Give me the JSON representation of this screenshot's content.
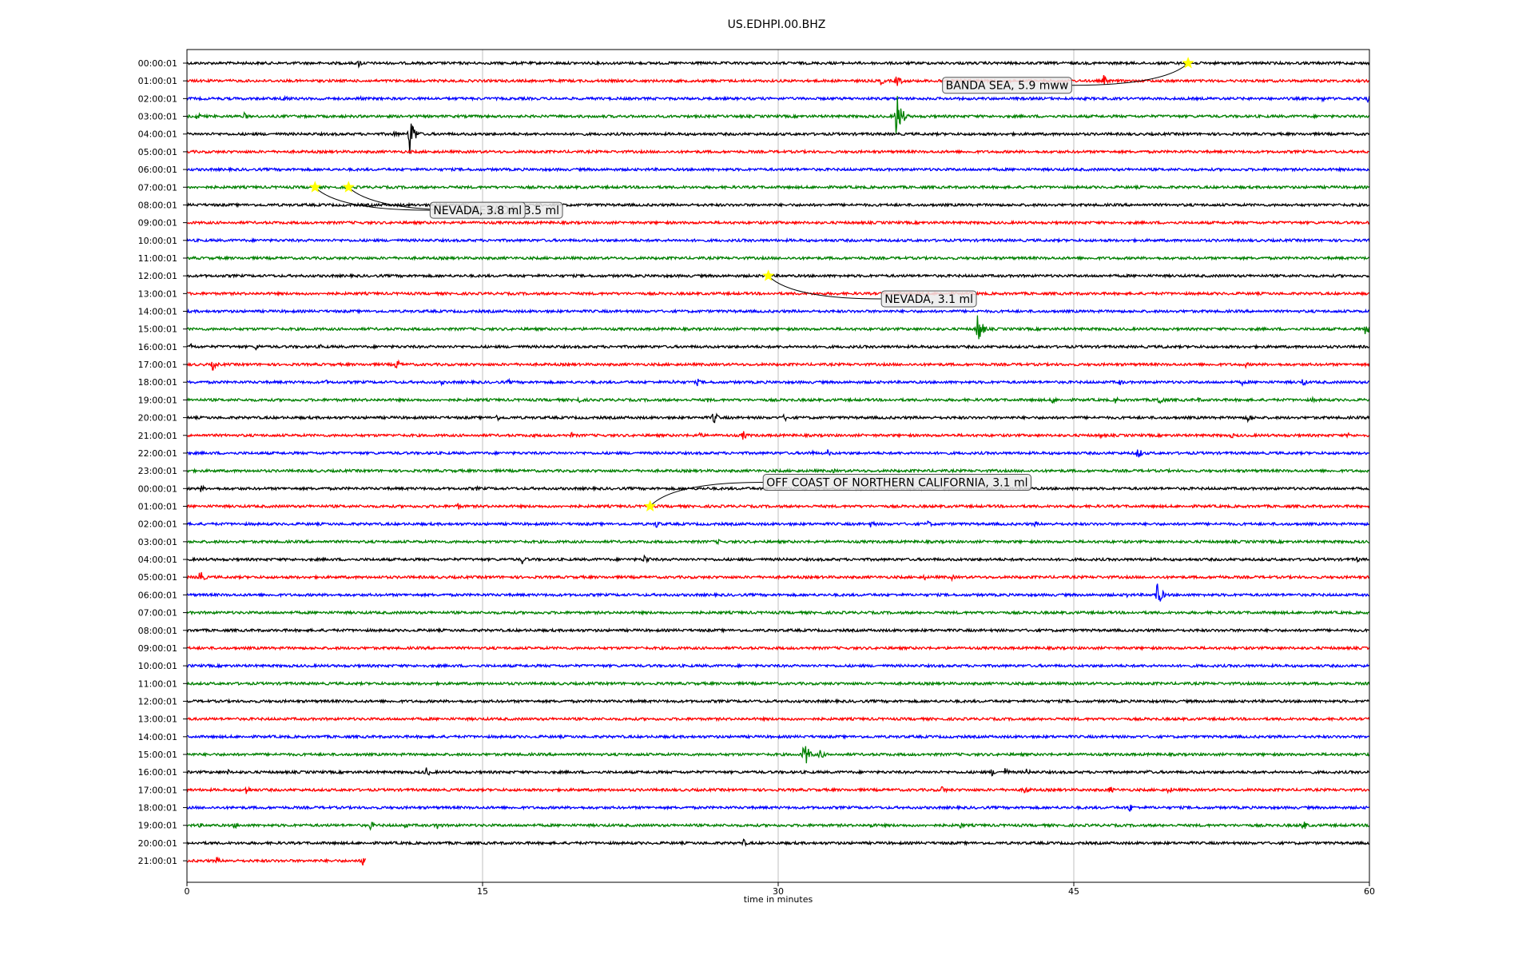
{
  "chart_data": {
    "type": "line",
    "title": "US.EDHPI.00.BHZ",
    "xlabel": "time in minutes",
    "ylabel": "",
    "xlim": [
      0,
      60
    ],
    "x_ticks": [
      "0",
      "15",
      "30",
      "45",
      "60"
    ],
    "grid": "vertical",
    "trace_colors": [
      "#000000",
      "#ff0000",
      "#0000ff",
      "#008000"
    ],
    "star_color": "#ffff00",
    "row_labels": [
      "00:00:01",
      "01:00:01",
      "02:00:01",
      "03:00:01",
      "04:00:01",
      "05:00:01",
      "06:00:01",
      "07:00:01",
      "08:00:01",
      "09:00:01",
      "10:00:01",
      "11:00:01",
      "12:00:01",
      "13:00:01",
      "14:00:01",
      "15:00:01",
      "16:00:01",
      "17:00:01",
      "18:00:01",
      "19:00:01",
      "20:00:01",
      "21:00:01",
      "22:00:01",
      "23:00:01",
      "00:00:01",
      "01:00:01",
      "02:00:01",
      "03:00:01",
      "04:00:01",
      "05:00:01",
      "06:00:01",
      "07:00:01",
      "08:00:01",
      "09:00:01",
      "10:00:01",
      "11:00:01",
      "12:00:01",
      "13:00:01",
      "14:00:01",
      "15:00:01",
      "16:00:01",
      "17:00:01",
      "18:00:01",
      "19:00:01",
      "20:00:01",
      "21:00:01"
    ],
    "last_row_end_minute": 9.1,
    "bursts": [
      {
        "row": 0,
        "t": 8.7,
        "a": 6
      },
      {
        "row": 1,
        "t": 35.2,
        "a": 6
      },
      {
        "row": 1,
        "t": 36.0,
        "a": 10
      },
      {
        "row": 1,
        "t": 38.0,
        "a": 5
      },
      {
        "row": 1,
        "t": 46.5,
        "a": 8
      },
      {
        "row": 2,
        "t": 4.9,
        "a": 8
      },
      {
        "row": 2,
        "t": 6.7,
        "a": 5
      },
      {
        "row": 2,
        "t": 8.7,
        "a": 5
      },
      {
        "row": 2,
        "t": 57.6,
        "a": 4
      },
      {
        "row": 2,
        "t": 59.9,
        "a": 7
      },
      {
        "row": 3,
        "t": 0.5,
        "a": 6
      },
      {
        "row": 3,
        "t": 2.9,
        "a": 5
      },
      {
        "row": 3,
        "t": 36.0,
        "a": 36
      },
      {
        "row": 4,
        "t": 11.3,
        "a": 28
      },
      {
        "row": 4,
        "t": 10.5,
        "a": 6
      },
      {
        "row": 15,
        "t": 40.1,
        "a": 24
      },
      {
        "row": 15,
        "t": 59.8,
        "a": 10
      },
      {
        "row": 16,
        "t": 0.2,
        "a": 5
      },
      {
        "row": 16,
        "t": 3.5,
        "a": 5
      },
      {
        "row": 16,
        "t": 6.8,
        "a": 4
      },
      {
        "row": 16,
        "t": 49.5,
        "a": 4
      },
      {
        "row": 17,
        "t": 1.3,
        "a": 8
      },
      {
        "row": 17,
        "t": 10.6,
        "a": 8
      },
      {
        "row": 17,
        "t": 53.7,
        "a": 4
      },
      {
        "row": 18,
        "t": 7.0,
        "a": 4
      },
      {
        "row": 18,
        "t": 12.9,
        "a": 4
      },
      {
        "row": 18,
        "t": 16.3,
        "a": 4
      },
      {
        "row": 18,
        "t": 24.7,
        "a": 5
      },
      {
        "row": 18,
        "t": 25.9,
        "a": 5
      },
      {
        "row": 18,
        "t": 47.3,
        "a": 5
      },
      {
        "row": 18,
        "t": 53.5,
        "a": 5
      },
      {
        "row": 18,
        "t": 56.6,
        "a": 6
      },
      {
        "row": 19,
        "t": 19.8,
        "a": 6
      },
      {
        "row": 19,
        "t": 26.4,
        "a": 4
      },
      {
        "row": 19,
        "t": 43.9,
        "a": 6
      },
      {
        "row": 19,
        "t": 47.1,
        "a": 5
      },
      {
        "row": 19,
        "t": 49.3,
        "a": 9
      },
      {
        "row": 19,
        "t": 51.3,
        "a": 4
      },
      {
        "row": 19,
        "t": 57.1,
        "a": 4
      },
      {
        "row": 20,
        "t": 15.7,
        "a": 5
      },
      {
        "row": 20,
        "t": 26.7,
        "a": 10
      },
      {
        "row": 20,
        "t": 30.3,
        "a": 6
      },
      {
        "row": 20,
        "t": 53.8,
        "a": 8
      },
      {
        "row": 21,
        "t": 17.5,
        "a": 4
      },
      {
        "row": 21,
        "t": 19.5,
        "a": 4
      },
      {
        "row": 21,
        "t": 26.0,
        "a": 5
      },
      {
        "row": 21,
        "t": 28.2,
        "a": 7
      },
      {
        "row": 21,
        "t": 46.3,
        "a": 4
      },
      {
        "row": 21,
        "t": 53.0,
        "a": 4
      },
      {
        "row": 21,
        "t": 58.9,
        "a": 4
      },
      {
        "row": 22,
        "t": 31.6,
        "a": 5
      },
      {
        "row": 22,
        "t": 32.5,
        "a": 5
      },
      {
        "row": 22,
        "t": 48.2,
        "a": 10
      },
      {
        "row": 23,
        "t": 32.8,
        "a": 3
      },
      {
        "row": 24,
        "t": 0.7,
        "a": 5
      },
      {
        "row": 24,
        "t": 14.7,
        "a": 3
      },
      {
        "row": 24,
        "t": 34.6,
        "a": 5
      },
      {
        "row": 25,
        "t": 12.1,
        "a": 3
      },
      {
        "row": 25,
        "t": 13.7,
        "a": 6
      },
      {
        "row": 26,
        "t": 23.8,
        "a": 6
      },
      {
        "row": 26,
        "t": 34.7,
        "a": 6
      },
      {
        "row": 26,
        "t": 37.6,
        "a": 5
      },
      {
        "row": 26,
        "t": 43.0,
        "a": 4
      },
      {
        "row": 27,
        "t": 26.9,
        "a": 4
      },
      {
        "row": 28,
        "t": 17.0,
        "a": 7
      },
      {
        "row": 28,
        "t": 23.2,
        "a": 8
      },
      {
        "row": 28,
        "t": 59.3,
        "a": 5
      },
      {
        "row": 29,
        "t": 0.6,
        "a": 12
      },
      {
        "row": 29,
        "t": 37.4,
        "a": 4
      },
      {
        "row": 29,
        "t": 38.8,
        "a": 4
      },
      {
        "row": 29,
        "t": 52.4,
        "a": 4
      },
      {
        "row": 30,
        "t": 47.6,
        "a": 5
      },
      {
        "row": 30,
        "t": 49.2,
        "a": 20
      },
      {
        "row": 39,
        "t": 31.3,
        "a": 22
      },
      {
        "row": 39,
        "t": 32.1,
        "a": 8
      },
      {
        "row": 40,
        "t": 2.0,
        "a": 5
      },
      {
        "row": 40,
        "t": 12.1,
        "a": 8
      },
      {
        "row": 40,
        "t": 40.8,
        "a": 6
      },
      {
        "row": 40,
        "t": 41.5,
        "a": 6
      },
      {
        "row": 40,
        "t": 42.6,
        "a": 5
      },
      {
        "row": 40,
        "t": 48.7,
        "a": 4
      },
      {
        "row": 41,
        "t": 3.0,
        "a": 7
      },
      {
        "row": 41,
        "t": 38.3,
        "a": 6
      },
      {
        "row": 41,
        "t": 42.5,
        "a": 7
      },
      {
        "row": 41,
        "t": 46.8,
        "a": 6
      },
      {
        "row": 41,
        "t": 49.8,
        "a": 6
      },
      {
        "row": 42,
        "t": 47.8,
        "a": 7
      },
      {
        "row": 43,
        "t": 0.6,
        "a": 4
      },
      {
        "row": 43,
        "t": 2.4,
        "a": 5
      },
      {
        "row": 43,
        "t": 9.3,
        "a": 6
      },
      {
        "row": 43,
        "t": 11.0,
        "a": 5
      },
      {
        "row": 43,
        "t": 12.7,
        "a": 6
      },
      {
        "row": 43,
        "t": 34.7,
        "a": 5
      },
      {
        "row": 43,
        "t": 39.2,
        "a": 5
      },
      {
        "row": 43,
        "t": 56.6,
        "a": 8
      },
      {
        "row": 44,
        "t": 28.2,
        "a": 6
      },
      {
        "row": 45,
        "t": 1.5,
        "a": 5
      },
      {
        "row": 45,
        "t": 8.9,
        "a": 10
      }
    ],
    "events": [
      {
        "label": "BANDA SEA, 5.9 mww",
        "row": 0,
        "t": 50.8,
        "label_row": 1.25,
        "label_t": 38.5
      },
      {
        "label": "NEVADA, 3.5 ml",
        "row": 7,
        "t": 8.2,
        "label_row": 8.3,
        "label_t": 14.4
      },
      {
        "label": "NEVADA, 3.8 ml",
        "row": 7,
        "t": 6.5,
        "label_row": 8.3,
        "label_t": 12.5
      },
      {
        "label": "NEVADA, 3.1 ml",
        "row": 12,
        "t": 29.5,
        "label_row": 13.3,
        "label_t": 35.4
      },
      {
        "label": "OFF COAST OF NORTHERN CALIFORNIA, 3.1 ml",
        "row": 25,
        "t": 23.5,
        "label_row": 23.65,
        "label_t": 29.4
      }
    ]
  }
}
